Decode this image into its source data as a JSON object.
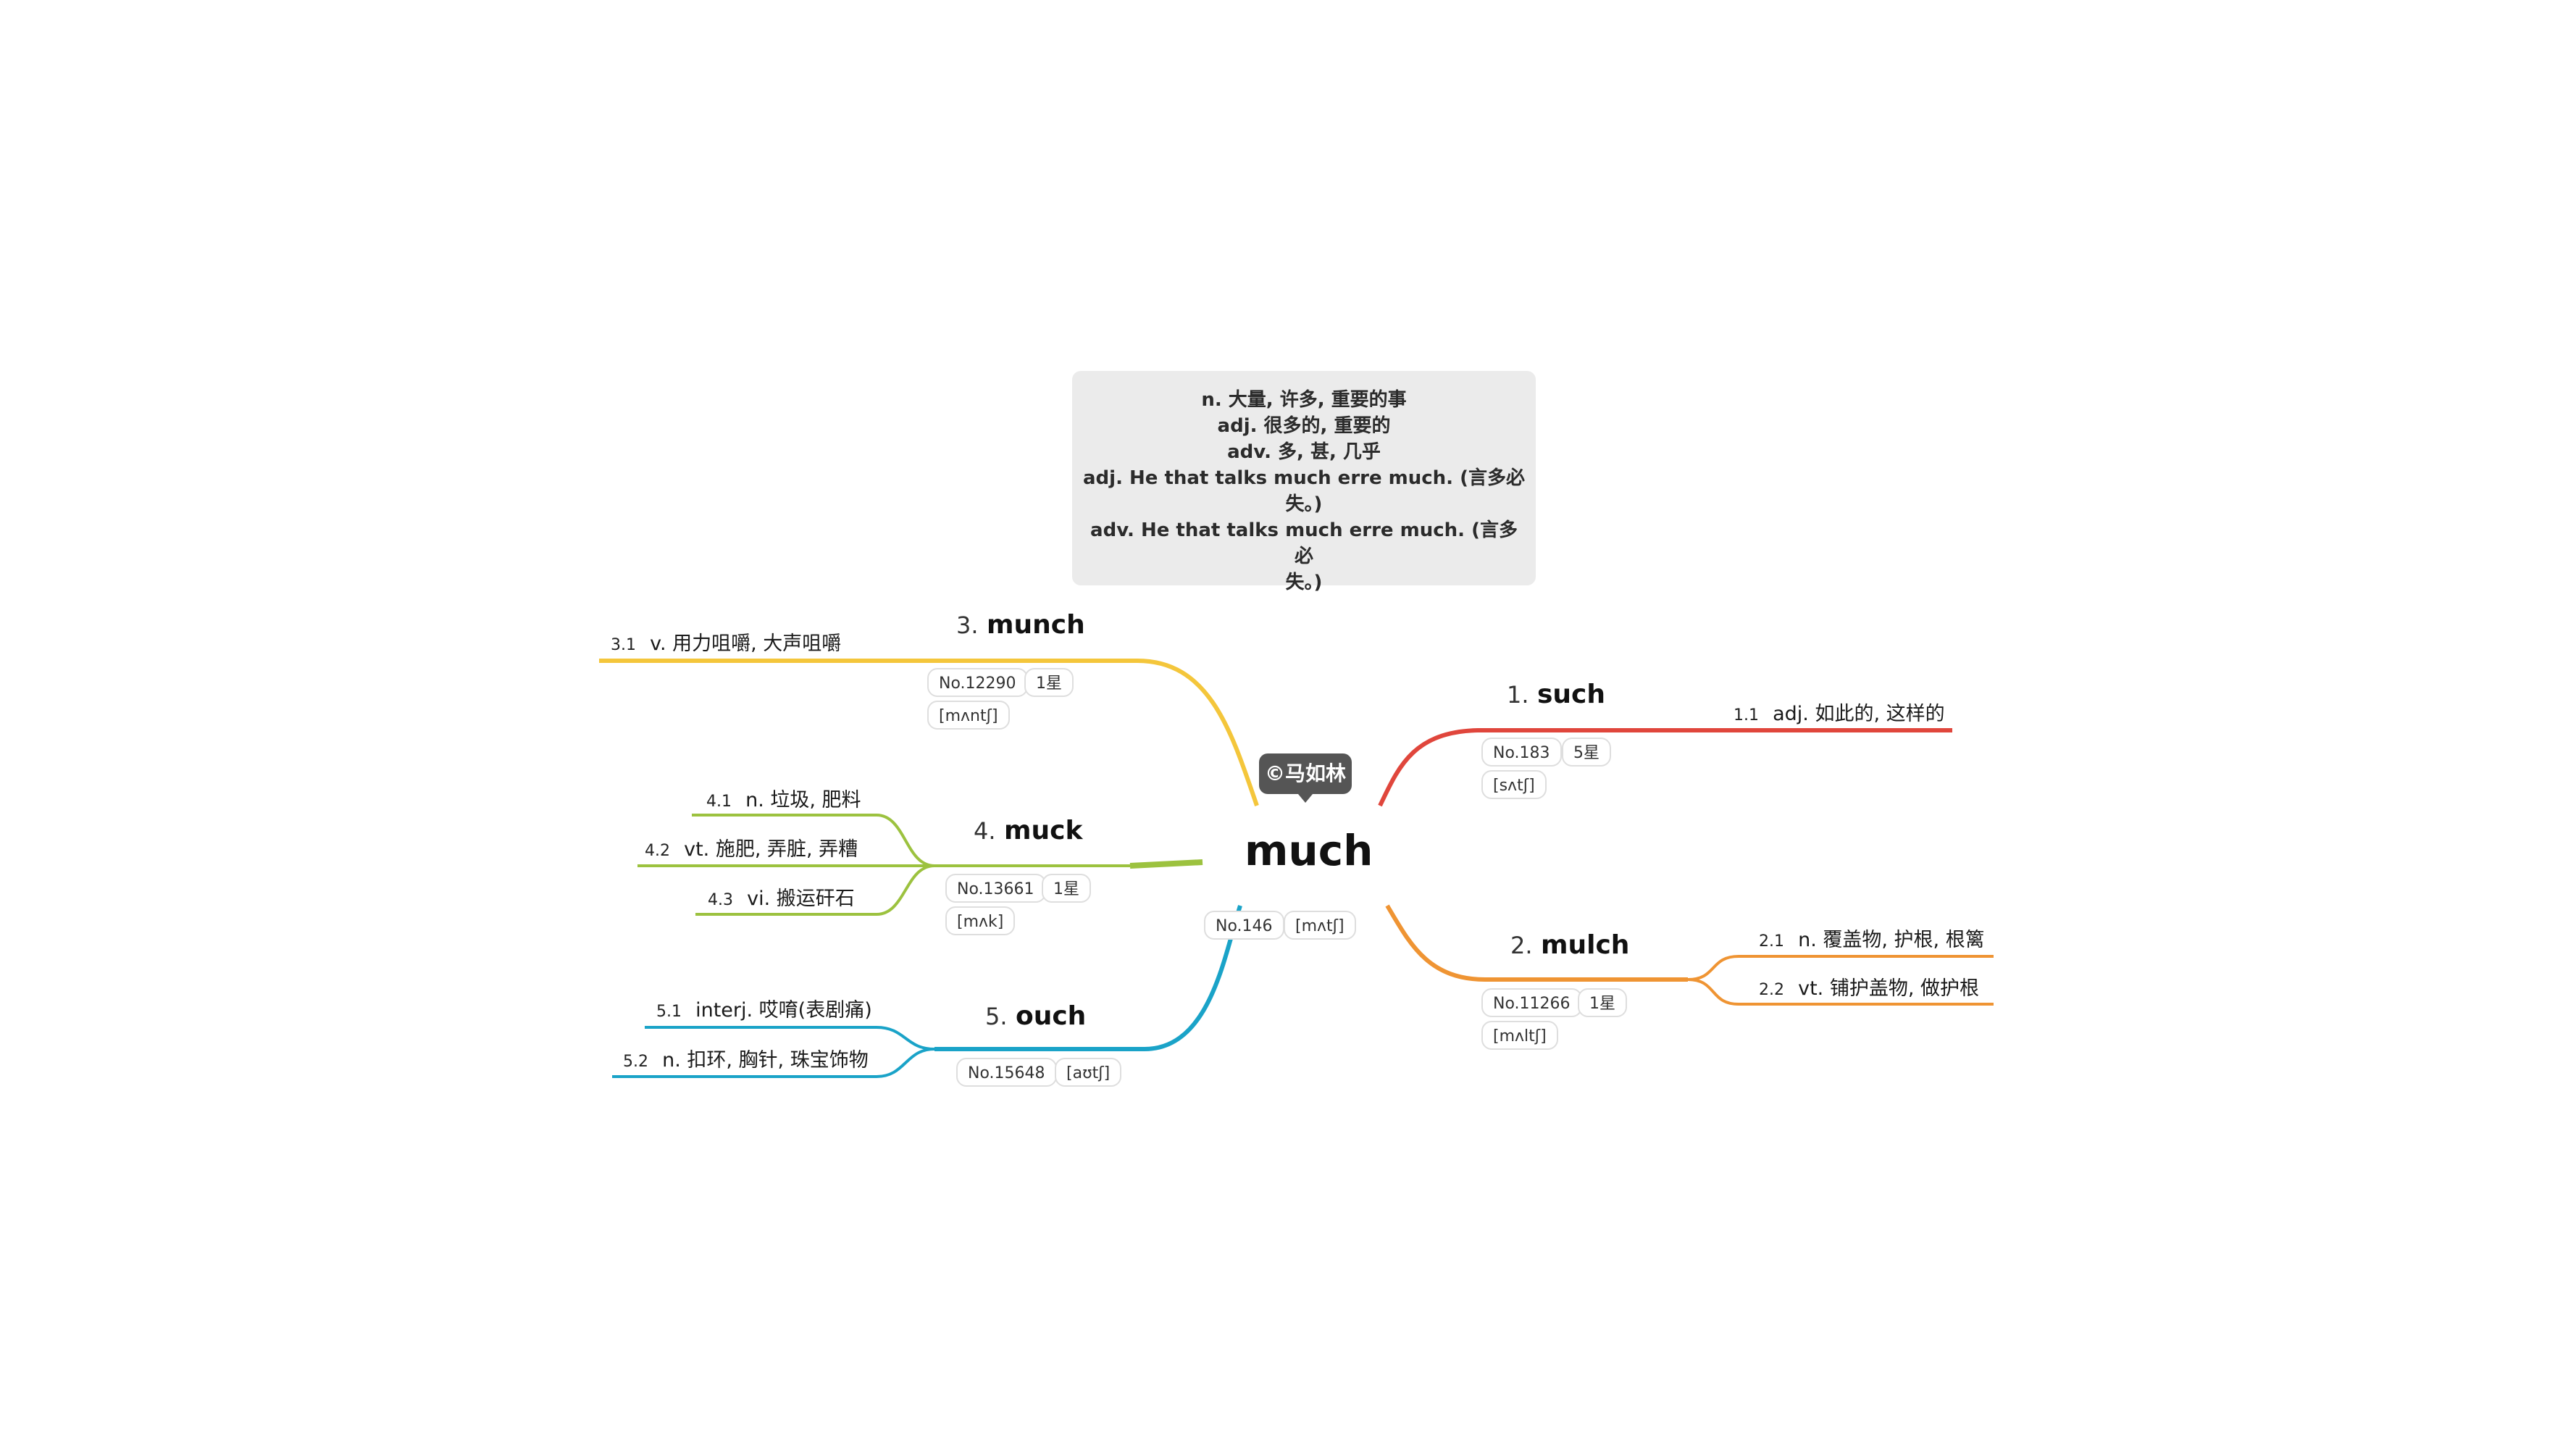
{
  "center": {
    "word": "much",
    "number": "No.146",
    "phonetic": "[mʌtʃ]",
    "copyright": "©马如林"
  },
  "note": {
    "lines": [
      "n. 大量, 许多, 重要的事",
      "adj. 很多的, 重要的",
      "adv. 多, 甚, 几乎",
      "adj. He that talks much erre much. (言多必",
      "失。)",
      "adv. He that talks much erre much. (言多必",
      "失。)"
    ]
  },
  "branches": [
    {
      "index": "1.",
      "word": "such",
      "number": "No.183",
      "stars": "5星",
      "phonetic": "[sʌtʃ]",
      "color": "#e0463c",
      "subs": [
        {
          "num": "1.1",
          "text": "adj. 如此的, 这样的"
        }
      ]
    },
    {
      "index": "2.",
      "word": "mulch",
      "number": "No.11266",
      "stars": "1星",
      "phonetic": "[mʌltʃ]",
      "color": "#ef9433",
      "subs": [
        {
          "num": "2.1",
          "text": "n. 覆盖物, 护根, 根篱"
        },
        {
          "num": "2.2",
          "text": "vt. 铺护盖物, 做护根"
        }
      ]
    },
    {
      "index": "3.",
      "word": "munch",
      "number": "No.12290",
      "stars": "1星",
      "phonetic": "[mʌntʃ]",
      "color": "#f4c63b",
      "subs": [
        {
          "num": "3.1",
          "text": "v. 用力咀嚼, 大声咀嚼"
        }
      ]
    },
    {
      "index": "4.",
      "word": "muck",
      "number": "No.13661",
      "stars": "1星",
      "phonetic": "[mʌk]",
      "color": "#9cc23f",
      "subs": [
        {
          "num": "4.1",
          "text": "n. 垃圾, 肥料"
        },
        {
          "num": "4.2",
          "text": "vt. 施肥, 弄脏, 弄糟"
        },
        {
          "num": "4.3",
          "text": "vi. 搬运矸石"
        }
      ]
    },
    {
      "index": "5.",
      "word": "ouch",
      "number": "No.15648",
      "phonetic": "[aʊtʃ]",
      "color": "#1aa3c8",
      "subs": [
        {
          "num": "5.1",
          "text": "interj. 哎唷(表剧痛)"
        },
        {
          "num": "5.2",
          "text": "n. 扣环, 胸针, 珠宝饰物"
        }
      ]
    }
  ]
}
